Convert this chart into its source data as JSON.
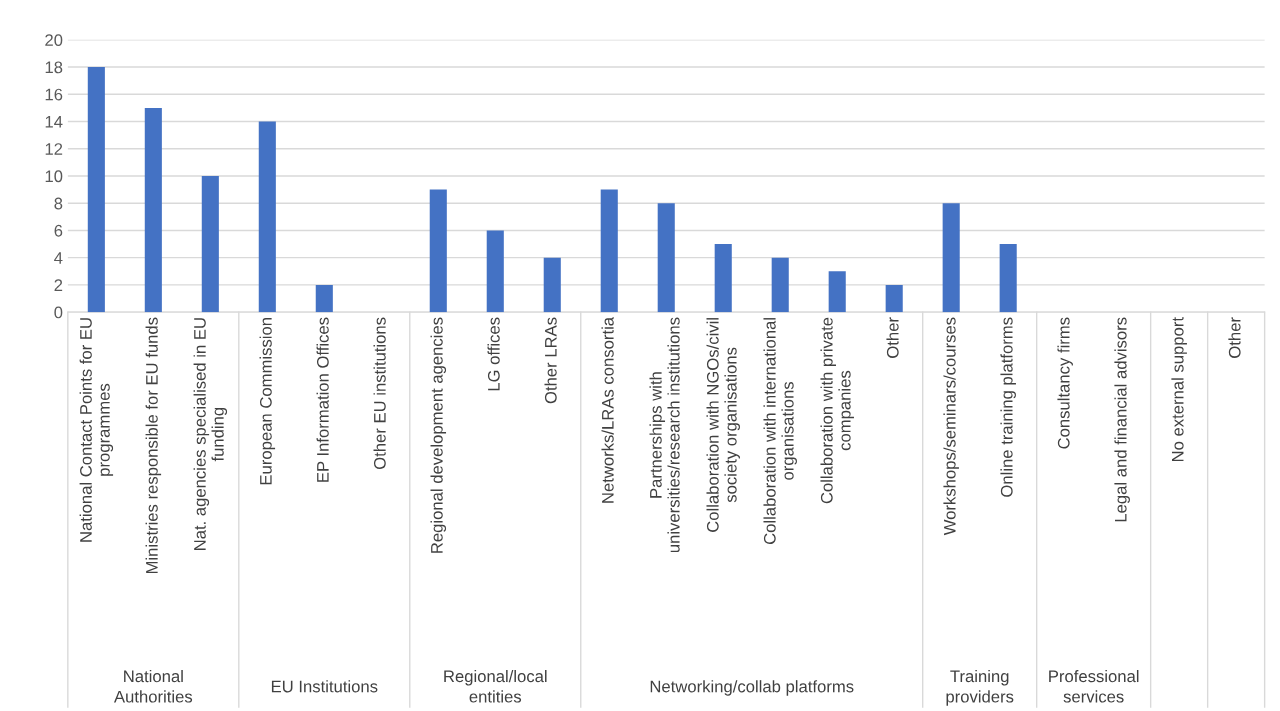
{
  "chart_data": {
    "type": "bar",
    "categories": [
      "National Contact Points for EU\nprogrammes",
      "Ministries responsible for EU funds",
      "Nat. agencies specialised in EU\nfunding",
      "European Commission",
      "EP Information Offices",
      "Other EU institutions",
      "Regional development agencies",
      "LG offices",
      "Other LRAs",
      "Networks/LRAs consortia",
      "Partnerships with\nuniversities/research institutions",
      "Collaboration with NGOs/civil\nsociety organisations",
      "Collaboration with international\norganisations",
      "Collaboration with private\ncompanies",
      "Other",
      "Workshops/seminars/courses",
      "Online training platforms",
      "Consultancy firms",
      "Legal and financial advisors",
      "No external support",
      "Other"
    ],
    "values": [
      18,
      15,
      10,
      14,
      2,
      0,
      9,
      6,
      4,
      9,
      8,
      5,
      4,
      3,
      2,
      8,
      5,
      0,
      0,
      0,
      0
    ],
    "color": "#4472c4",
    "ylim": [
      0,
      20
    ],
    "yticks": [
      0,
      2,
      4,
      6,
      8,
      10,
      12,
      14,
      16,
      18,
      20
    ],
    "grid": "y",
    "legend": false,
    "annotations": [
      "National\nAuthorities",
      "EU Institutions",
      "Regional/local\nentities",
      "Networking/collab platforms",
      "Training\nproviders",
      "Professional\nservices"
    ]
  }
}
